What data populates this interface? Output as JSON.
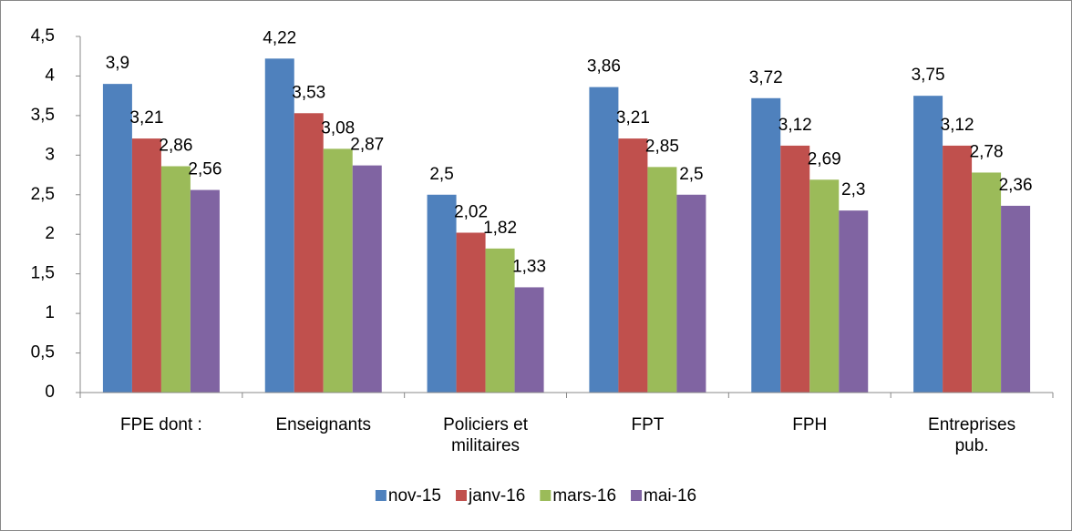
{
  "chart_data": {
    "type": "bar",
    "categories": [
      "FPE dont :",
      "Enseignants",
      "Policiers et militaires",
      "FPT",
      "FPH",
      "Entreprises pub."
    ],
    "series": [
      {
        "name": "nov-15",
        "color": "#4f81bd",
        "values": [
          3.9,
          4.22,
          2.5,
          3.86,
          3.72,
          3.75
        ],
        "value_labels": [
          "3,9",
          "4,22",
          "2,5",
          "3,86",
          "3,72",
          "3,75"
        ]
      },
      {
        "name": "janv-16",
        "color": "#c0504d",
        "values": [
          3.21,
          3.53,
          2.02,
          3.21,
          3.12,
          3.12
        ],
        "value_labels": [
          "3,21",
          "3,53",
          "2,02",
          "3,21",
          "3,12",
          "3,12"
        ]
      },
      {
        "name": "mars-16",
        "color": "#9bbb59",
        "values": [
          2.86,
          3.08,
          1.82,
          2.85,
          2.69,
          2.78
        ],
        "value_labels": [
          "2,86",
          "3,08",
          "1,82",
          "2,85",
          "2,69",
          "2,78"
        ]
      },
      {
        "name": "mai-16",
        "color": "#8064a2",
        "values": [
          2.56,
          2.87,
          1.33,
          2.5,
          2.3,
          2.36
        ],
        "value_labels": [
          "2,56",
          "2,87",
          "1,33",
          "2,5",
          "2,3",
          "2,36"
        ]
      }
    ],
    "ylim": [
      0,
      4.5
    ],
    "yticks": [
      0,
      {
        "value": 0.5,
        "label": "0,5"
      },
      1,
      {
        "value": 1.5,
        "label": "1,5"
      },
      2,
      {
        "value": 2.5,
        "label": "2,5"
      },
      3,
      {
        "value": 3.5,
        "label": "3,5"
      },
      4,
      {
        "value": 4.5,
        "label": "4,5"
      }
    ],
    "grid": false,
    "legend": "bottom"
  }
}
